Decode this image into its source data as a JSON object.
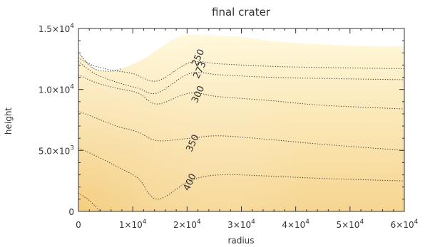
{
  "chart_data": {
    "type": "contour",
    "title": "final crater",
    "xlabel": "radius",
    "ylabel": "height",
    "xlim": [
      0,
      60000
    ],
    "ylim": [
      0,
      15000
    ],
    "x_ticks": [
      {
        "value": 0,
        "label": "0"
      },
      {
        "value": 10000,
        "base": "1×10",
        "exp": "4"
      },
      {
        "value": 20000,
        "base": "2×10",
        "exp": "4"
      },
      {
        "value": 30000,
        "base": "3×10",
        "exp": "4"
      },
      {
        "value": 40000,
        "base": "4×10",
        "exp": "4"
      },
      {
        "value": 50000,
        "base": "5×10",
        "exp": "4"
      },
      {
        "value": 60000,
        "base": "6×10",
        "exp": "4"
      }
    ],
    "y_ticks": [
      {
        "value": 0,
        "label": "0"
      },
      {
        "value": 5000,
        "base": "5.0×10",
        "exp": "3"
      },
      {
        "value": 10000,
        "base": "1.0×10",
        "exp": "4"
      },
      {
        "value": 15000,
        "base": "1.5×10",
        "exp": "4"
      }
    ],
    "surface": [
      [
        0,
        13000
      ],
      [
        800,
        12600
      ],
      [
        2000,
        12000
      ],
      [
        3500,
        11600
      ],
      [
        6000,
        11500
      ],
      [
        8000,
        11700
      ],
      [
        12000,
        12500
      ],
      [
        16000,
        13700
      ],
      [
        19000,
        14400
      ],
      [
        22000,
        14500
      ],
      [
        26000,
        14400
      ],
      [
        30000,
        14300
      ],
      [
        35000,
        14000
      ],
      [
        40000,
        13800
      ],
      [
        45000,
        13700
      ],
      [
        50000,
        13600
      ],
      [
        55000,
        13550
      ],
      [
        60000,
        13550
      ]
    ],
    "contours": [
      {
        "label": "250",
        "points": [
          [
            0,
            12600
          ],
          [
            2500,
            12000
          ],
          [
            6000,
            11600
          ],
          [
            10000,
            11300
          ],
          [
            14500,
            10700
          ],
          [
            20500,
            12200
          ],
          [
            26000,
            12100
          ],
          [
            35000,
            11900
          ],
          [
            45000,
            11800
          ],
          [
            60000,
            11700
          ]
        ]
      },
      {
        "label": "273",
        "points": [
          [
            0,
            12300
          ],
          [
            3000,
            11300
          ],
          [
            7000,
            10600
          ],
          [
            11000,
            10100
          ],
          [
            14500,
            9700
          ],
          [
            20500,
            11300
          ],
          [
            26000,
            11200
          ],
          [
            35000,
            11000
          ],
          [
            45000,
            10900
          ],
          [
            60000,
            10800
          ]
        ]
      },
      {
        "label": "300",
        "points": [
          [
            0,
            11200
          ],
          [
            3000,
            10600
          ],
          [
            7000,
            10100
          ],
          [
            11000,
            9700
          ],
          [
            14500,
            8800
          ],
          [
            20500,
            9700
          ],
          [
            26000,
            9400
          ],
          [
            35000,
            9100
          ],
          [
            45000,
            8700
          ],
          [
            60000,
            8400
          ]
        ]
      },
      {
        "label": "350",
        "points": [
          [
            0,
            8200
          ],
          [
            3000,
            7700
          ],
          [
            7000,
            7000
          ],
          [
            11000,
            6500
          ],
          [
            14500,
            5800
          ],
          [
            20500,
            6000
          ],
          [
            26000,
            6200
          ],
          [
            35000,
            5900
          ],
          [
            45000,
            5500
          ],
          [
            60000,
            5000
          ]
        ]
      },
      {
        "label": "400",
        "points": [
          [
            0,
            5200
          ],
          [
            3000,
            4600
          ],
          [
            7000,
            3700
          ],
          [
            11000,
            2700
          ],
          [
            14500,
            1000
          ],
          [
            20500,
            2500
          ],
          [
            26000,
            3000
          ],
          [
            35000,
            2900
          ],
          [
            45000,
            2700
          ],
          [
            60000,
            2500
          ]
        ]
      },
      {
        "label": "",
        "points": [
          [
            0,
            1500
          ],
          [
            2000,
            900
          ],
          [
            4000,
            0
          ]
        ]
      }
    ],
    "contour_label_positions": [
      {
        "label": "250",
        "x": 22500,
        "y": 12500,
        "angle": -65
      },
      {
        "label": "273",
        "x": 22800,
        "y": 11500,
        "angle": -65
      },
      {
        "label": "300",
        "x": 22500,
        "y": 9500,
        "angle": -65
      },
      {
        "label": "350",
        "x": 21500,
        "y": 5500,
        "angle": -65
      },
      {
        "label": "400",
        "x": 21000,
        "y": 2300,
        "angle": -65
      }
    ],
    "colors": {
      "light": "#fff8da",
      "dark": "#f6d590",
      "contour": "#333333",
      "axis": "#333333"
    }
  }
}
